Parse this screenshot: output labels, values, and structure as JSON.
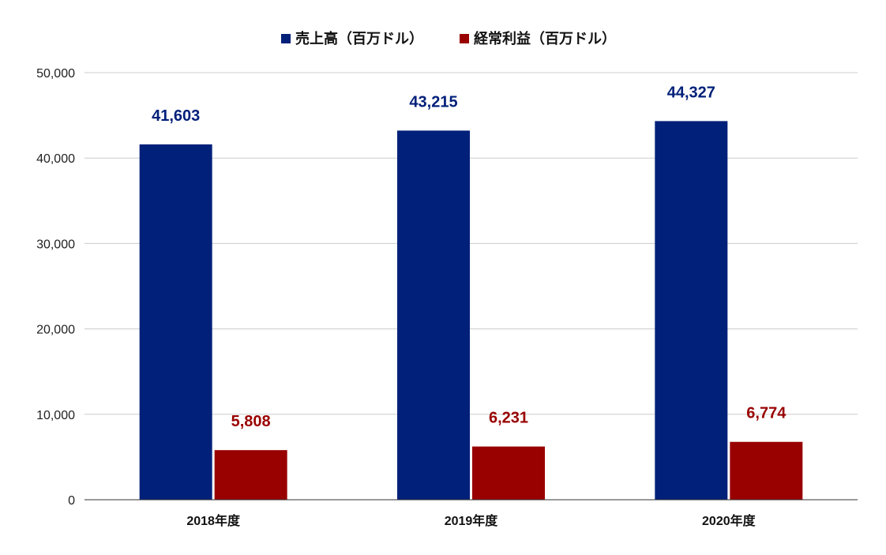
{
  "chart_data": {
    "type": "bar",
    "categories": [
      "2018年度",
      "2019年度",
      "2020年度"
    ],
    "series": [
      {
        "name": "売上高（百万ドル）",
        "values": [
          41603,
          43215,
          44327
        ],
        "labels": [
          "41,603",
          "43,215",
          "44,327"
        ],
        "color": "#00207a"
      },
      {
        "name": "経常利益（百万ドル）",
        "values": [
          5808,
          6231,
          6774
        ],
        "labels": [
          "5,808",
          "6,231",
          "6,774"
        ],
        "color": "#990000"
      }
    ],
    "ylim": [
      0,
      50000
    ],
    "yticks": [
      0,
      10000,
      20000,
      30000,
      40000,
      50000
    ],
    "ytick_labels": [
      "0",
      "10,000",
      "20,000",
      "30,000",
      "40,000",
      "50,000"
    ],
    "grid": true,
    "legend_position": "top-center",
    "data_labels": true
  }
}
